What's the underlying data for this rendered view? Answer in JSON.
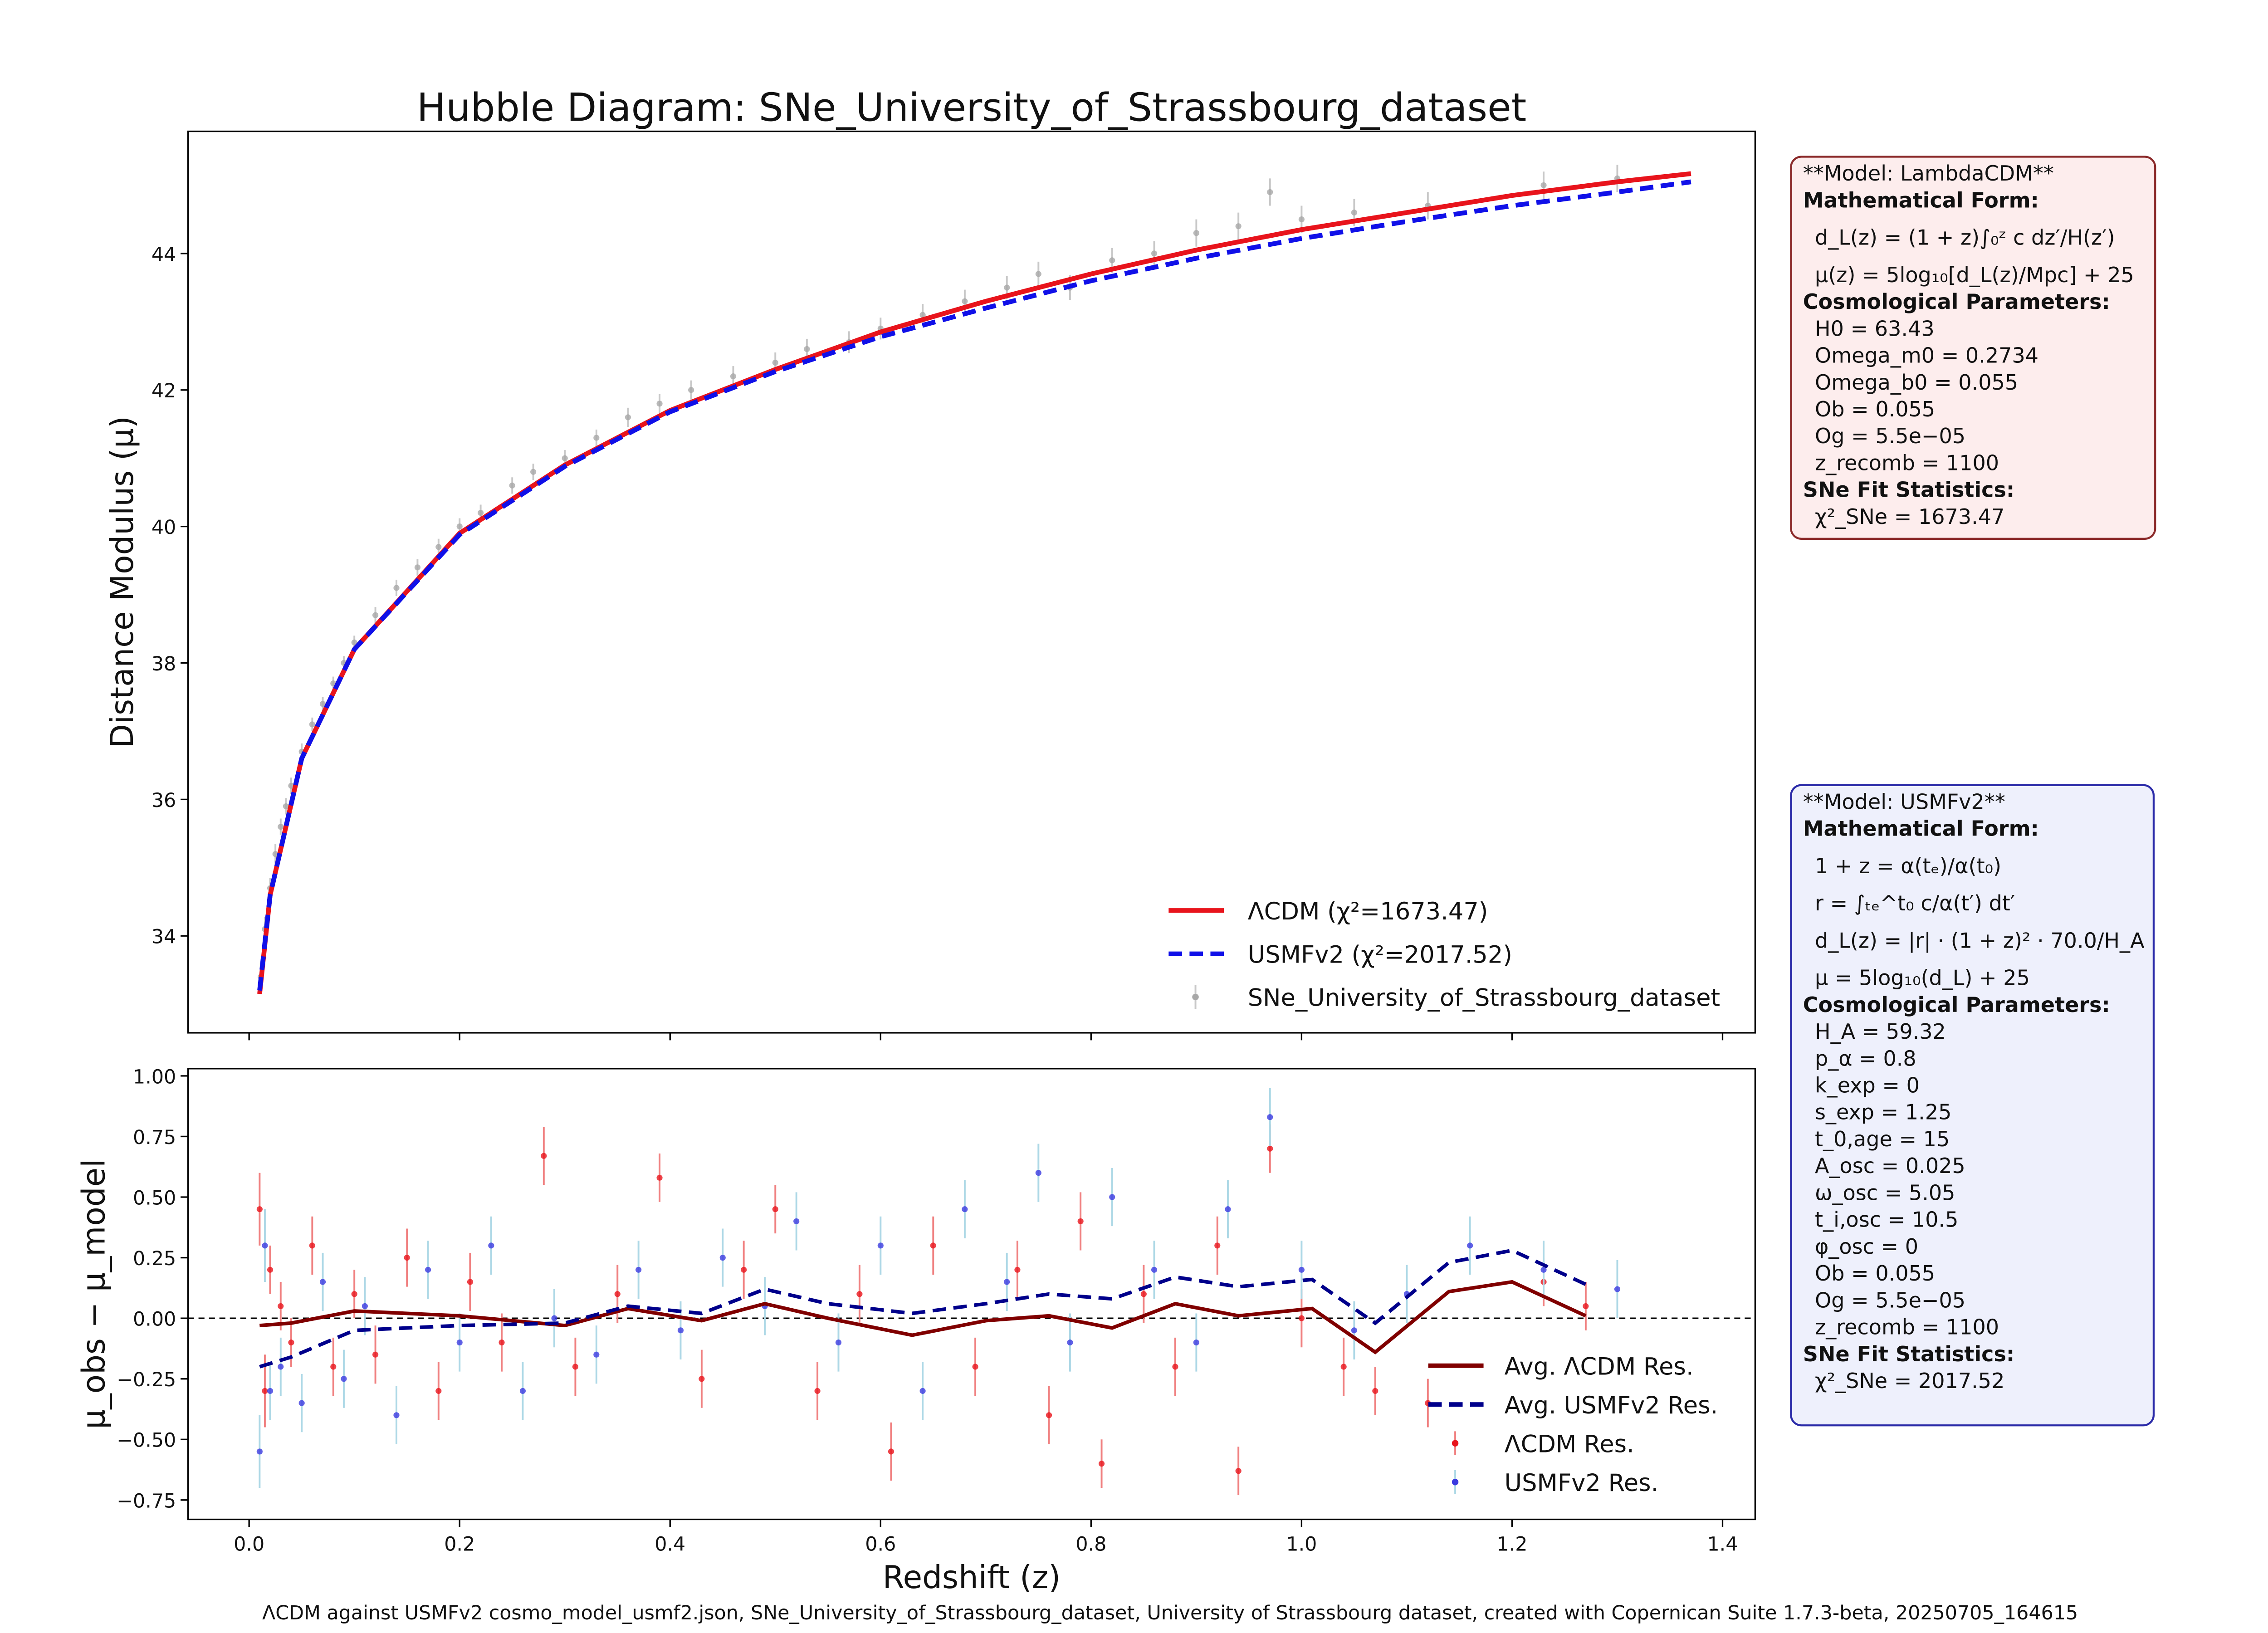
{
  "chart_data": [
    {
      "type": "line",
      "title": "Hubble Diagram: SNe_University_of_Strassbourg_dataset",
      "ylabel": "Distance Modulus (μ)",
      "xlim": [
        -0.058,
        1.431
      ],
      "ylim": [
        32.58,
        45.79
      ],
      "yticks": [
        34,
        36,
        38,
        40,
        42,
        44
      ],
      "legend": "lower right",
      "series": [
        {
          "name": "ΛCDM (χ²=1673.47)",
          "type": "line",
          "color": "#e8141c",
          "style": "solid",
          "x": [
            0.01,
            0.02,
            0.05,
            0.1,
            0.2,
            0.3,
            0.4,
            0.5,
            0.6,
            0.7,
            0.8,
            0.9,
            1.0,
            1.1,
            1.2,
            1.3,
            1.37
          ],
          "values": [
            33.15,
            34.6,
            36.6,
            38.2,
            39.9,
            40.9,
            41.7,
            42.3,
            42.85,
            43.3,
            43.7,
            44.05,
            44.35,
            44.6,
            44.85,
            45.05,
            45.17
          ]
        },
        {
          "name": "USMFv2 (χ²=2017.52)",
          "type": "line",
          "color": "#1010e8",
          "style": "dashed",
          "x": [
            0.01,
            0.02,
            0.05,
            0.1,
            0.2,
            0.3,
            0.4,
            0.5,
            0.6,
            0.7,
            0.8,
            0.9,
            1.0,
            1.1,
            1.2,
            1.3,
            1.37
          ],
          "values": [
            33.2,
            34.6,
            36.6,
            38.2,
            39.88,
            40.88,
            41.68,
            42.27,
            42.78,
            43.2,
            43.6,
            43.93,
            44.22,
            44.47,
            44.7,
            44.9,
            45.05
          ]
        },
        {
          "name": "SNe_University_of_Strassbourg_dataset",
          "type": "errorbar",
          "color": "#a8a8a8",
          "ecolor": "#c8c8c8",
          "x": [
            0.011,
            0.015,
            0.02,
            0.025,
            0.03,
            0.035,
            0.04,
            0.05,
            0.06,
            0.07,
            0.08,
            0.09,
            0.1,
            0.12,
            0.14,
            0.16,
            0.18,
            0.2,
            0.22,
            0.25,
            0.27,
            0.3,
            0.33,
            0.36,
            0.39,
            0.42,
            0.46,
            0.5,
            0.53,
            0.57,
            0.6,
            0.64,
            0.68,
            0.72,
            0.75,
            0.78,
            0.82,
            0.86,
            0.9,
            0.94,
            0.97,
            1.0,
            1.05,
            1.12,
            1.23,
            1.3
          ],
          "values": [
            33.4,
            34.1,
            34.7,
            35.2,
            35.6,
            35.9,
            36.2,
            36.7,
            37.1,
            37.4,
            37.7,
            38.0,
            38.3,
            38.7,
            39.1,
            39.4,
            39.7,
            40.0,
            40.2,
            40.6,
            40.8,
            41.0,
            41.3,
            41.6,
            41.8,
            42.0,
            42.2,
            42.4,
            42.6,
            42.7,
            42.9,
            43.1,
            43.3,
            43.5,
            43.7,
            43.5,
            43.9,
            44.0,
            44.3,
            44.4,
            44.9,
            44.5,
            44.6,
            44.7,
            45.0,
            45.1
          ],
          "errors": [
            0.2,
            0.18,
            0.15,
            0.15,
            0.12,
            0.12,
            0.12,
            0.12,
            0.1,
            0.1,
            0.1,
            0.1,
            0.1,
            0.12,
            0.12,
            0.12,
            0.12,
            0.12,
            0.12,
            0.12,
            0.12,
            0.12,
            0.12,
            0.14,
            0.14,
            0.14,
            0.15,
            0.15,
            0.15,
            0.16,
            0.16,
            0.16,
            0.17,
            0.17,
            0.18,
            0.18,
            0.18,
            0.18,
            0.2,
            0.2,
            0.2,
            0.2,
            0.2,
            0.2,
            0.2,
            0.2
          ]
        }
      ]
    },
    {
      "type": "line",
      "xlabel": "Redshift (z)",
      "ylabel": "μ_obs − μ_model",
      "xlim": [
        -0.058,
        1.431
      ],
      "ylim": [
        -0.83,
        1.03
      ],
      "reference_line": 0,
      "legend": "lower right",
      "xticks": [
        {
          "value": 0,
          "label": "0.0"
        },
        {
          "value": 0.2,
          "label": "0.2"
        },
        {
          "value": 0.4,
          "label": "0.4"
        },
        {
          "value": 0.6,
          "label": "0.6"
        },
        {
          "value": 0.8,
          "label": "0.8"
        },
        {
          "value": 1,
          "label": "1.0"
        },
        {
          "value": 1.2,
          "label": "1.2"
        },
        {
          "value": 1.4,
          "label": "1.4"
        }
      ],
      "yticks": [
        {
          "value": 1,
          "label": "1.00"
        },
        {
          "value": 0.75,
          "label": "0.75"
        },
        {
          "value": 0.5,
          "label": "0.50"
        },
        {
          "value": 0.25,
          "label": "0.25"
        },
        {
          "value": 0,
          "label": "0.00"
        },
        {
          "value": -0.25,
          "label": "−0.25"
        },
        {
          "value": -0.5,
          "label": "−0.50"
        },
        {
          "value": -0.75,
          "label": "−0.75"
        }
      ],
      "series": [
        {
          "name": "Avg. ΛCDM Res.",
          "type": "line",
          "color": "#800000",
          "style": "solid",
          "x": [
            0.01,
            0.04,
            0.1,
            0.2,
            0.3,
            0.36,
            0.43,
            0.49,
            0.55,
            0.63,
            0.7,
            0.76,
            0.82,
            0.88,
            0.94,
            1.01,
            1.07,
            1.14,
            1.2,
            1.27
          ],
          "values": [
            -0.03,
            -0.02,
            0.03,
            0.01,
            -0.03,
            0.04,
            -0.01,
            0.06,
            0.0,
            -0.07,
            -0.01,
            0.01,
            -0.04,
            0.06,
            0.01,
            0.04,
            -0.14,
            0.11,
            0.15,
            0.01
          ]
        },
        {
          "name": "Avg. USMFv2 Res.",
          "type": "line",
          "color": "#00008b",
          "style": "dashed",
          "x": [
            0.01,
            0.04,
            0.1,
            0.2,
            0.3,
            0.36,
            0.43,
            0.49,
            0.55,
            0.63,
            0.7,
            0.76,
            0.82,
            0.88,
            0.94,
            1.01,
            1.07,
            1.14,
            1.2,
            1.27
          ],
          "values": [
            -0.2,
            -0.16,
            -0.05,
            -0.03,
            -0.02,
            0.05,
            0.02,
            0.12,
            0.06,
            0.02,
            0.06,
            0.1,
            0.08,
            0.17,
            0.13,
            0.16,
            -0.02,
            0.23,
            0.28,
            0.14
          ]
        },
        {
          "name": "ΛCDM Res.",
          "type": "errorbar",
          "color": "#e8141c",
          "ecolor": "#f08080",
          "x": [
            0.01,
            0.015,
            0.02,
            0.03,
            0.04,
            0.06,
            0.08,
            0.1,
            0.12,
            0.15,
            0.18,
            0.21,
            0.24,
            0.28,
            0.31,
            0.35,
            0.39,
            0.43,
            0.47,
            0.5,
            0.54,
            0.58,
            0.61,
            0.65,
            0.69,
            0.73,
            0.76,
            0.79,
            0.81,
            0.85,
            0.88,
            0.92,
            0.94,
            0.97,
            1.0,
            1.04,
            1.07,
            1.12,
            1.23,
            1.27
          ],
          "values": [
            0.45,
            -0.3,
            0.2,
            0.05,
            -0.1,
            0.3,
            -0.2,
            0.1,
            -0.15,
            0.25,
            -0.3,
            0.15,
            -0.1,
            0.67,
            -0.2,
            0.1,
            0.58,
            -0.25,
            0.2,
            0.45,
            -0.3,
            0.1,
            -0.55,
            0.3,
            -0.2,
            0.2,
            -0.4,
            0.4,
            -0.6,
            0.1,
            -0.2,
            0.3,
            -0.63,
            0.7,
            0.0,
            -0.2,
            -0.3,
            -0.35,
            0.15,
            0.05
          ],
          "errors": [
            0.15,
            0.15,
            0.1,
            0.1,
            0.1,
            0.12,
            0.12,
            0.1,
            0.12,
            0.12,
            0.12,
            0.12,
            0.12,
            0.12,
            0.12,
            0.12,
            0.1,
            0.12,
            0.12,
            0.1,
            0.12,
            0.12,
            0.12,
            0.12,
            0.12,
            0.12,
            0.12,
            0.12,
            0.1,
            0.12,
            0.12,
            0.12,
            0.1,
            0.1,
            0.12,
            0.12,
            0.1,
            0.1,
            0.1,
            0.1
          ]
        },
        {
          "name": "USMFv2 Res.",
          "type": "errorbar",
          "color": "#3a3ae0",
          "ecolor": "#add8e6",
          "x": [
            0.01,
            0.015,
            0.02,
            0.03,
            0.05,
            0.07,
            0.09,
            0.11,
            0.14,
            0.17,
            0.2,
            0.23,
            0.26,
            0.29,
            0.33,
            0.37,
            0.41,
            0.45,
            0.49,
            0.52,
            0.56,
            0.6,
            0.64,
            0.68,
            0.72,
            0.75,
            0.78,
            0.82,
            0.86,
            0.9,
            0.93,
            0.97,
            1.0,
            1.05,
            1.1,
            1.16,
            1.23,
            1.3
          ],
          "values": [
            -0.55,
            0.3,
            -0.3,
            -0.2,
            -0.35,
            0.15,
            -0.25,
            0.05,
            -0.4,
            0.2,
            -0.1,
            0.3,
            -0.3,
            0.0,
            -0.15,
            0.2,
            -0.05,
            0.25,
            0.05,
            0.4,
            -0.1,
            0.3,
            -0.3,
            0.45,
            0.15,
            0.6,
            -0.1,
            0.5,
            0.2,
            -0.1,
            0.45,
            0.83,
            0.2,
            -0.05,
            0.1,
            0.3,
            0.2,
            0.12
          ],
          "errors": [
            0.15,
            0.15,
            0.12,
            0.12,
            0.12,
            0.12,
            0.12,
            0.12,
            0.12,
            0.12,
            0.12,
            0.12,
            0.12,
            0.12,
            0.12,
            0.12,
            0.12,
            0.12,
            0.12,
            0.12,
            0.12,
            0.12,
            0.12,
            0.12,
            0.12,
            0.12,
            0.12,
            0.12,
            0.12,
            0.12,
            0.12,
            0.12,
            0.12,
            0.12,
            0.12,
            0.12,
            0.12,
            0.12
          ]
        }
      ]
    }
  ],
  "info_boxes": [
    {
      "title": "**Model: LambdaCDM**",
      "color": "#fdeded",
      "border": "#8b2a2a",
      "sections": [
        {
          "heading": "Mathematical Form:",
          "formulas": [
            "d_L(z) = (1 + z)∫₀ᶻ c dz′/H(z′)",
            "μ(z) = 5log₁₀[d_L(z)/Mpc] + 25"
          ]
        },
        {
          "heading": "Cosmological Parameters:",
          "lines": [
            "H0 = 63.43",
            "Omega_m0 = 0.2734",
            "Omega_b0 = 0.055",
            "Ob = 0.055",
            "Og = 5.5e−05",
            "z_recomb = 1100"
          ]
        },
        {
          "heading": "SNe Fit Statistics:",
          "lines": [
            "χ²_SNe = 1673.47"
          ]
        }
      ]
    },
    {
      "title": "**Model: USMFv2**",
      "color": "#eef0fc",
      "border": "#2a2aa8",
      "sections": [
        {
          "heading": "Mathematical Form:",
          "formulas": [
            "1 + z = α(tₑ)/α(t₀)",
            "r = ∫ₜₑ^t₀ c/α(t′) dt′",
            "d_L(z) = |r| · (1 + z)² · 70.0/H_A",
            "μ = 5log₁₀(d_L) + 25"
          ]
        },
        {
          "heading": "Cosmological Parameters:",
          "lines": [
            "H_A = 59.32",
            "p_α = 0.8",
            "k_exp = 0",
            "s_exp = 1.25",
            "t_0,age = 15",
            "A_osc = 0.025",
            "ω_osc = 5.05",
            "t_i,osc = 10.5",
            "φ_osc = 0",
            "Ob = 0.055",
            "Og = 5.5e−05",
            "z_recomb = 1100"
          ]
        },
        {
          "heading": "SNe Fit Statistics:",
          "lines": [
            "χ²_SNe = 2017.52"
          ]
        }
      ]
    }
  ],
  "footer": "ΛCDM against USMFv2 cosmo_model_usmf2.json, SNe_University_of_Strassbourg_dataset, University of Strassbourg dataset, created with Copernican Suite 1.7.3-beta, 20250705_164615"
}
